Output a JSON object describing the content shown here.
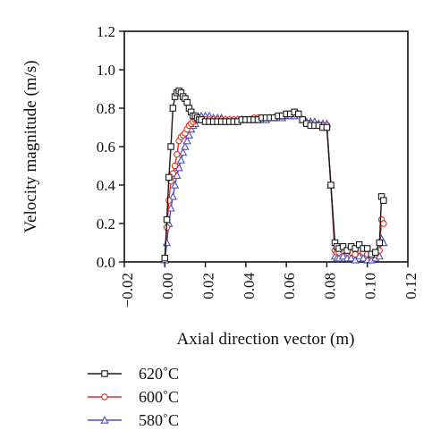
{
  "chart_data": {
    "type": "line",
    "xlabel": "Axial direction vector (m)",
    "ylabel": "Velocity magnitude (m/s)",
    "xlim": [
      -0.02,
      0.12
    ],
    "ylim": [
      0.0,
      1.2
    ],
    "xticks": [
      "−0.02",
      "0.00",
      "0.02",
      "0.04",
      "0.06",
      "0.08",
      "0.10",
      "0.12"
    ],
    "yticks": [
      "0.0",
      "0.2",
      "0.4",
      "0.6",
      "0.8",
      "1.0",
      "1.2"
    ],
    "grid": false,
    "legend": {
      "position": "bottom-left"
    },
    "series": [
      {
        "name": "620˚C",
        "color": "#1a1a1a",
        "marker": "square",
        "x": [
          0.0,
          0.001,
          0.002,
          0.003,
          0.004,
          0.005,
          0.006,
          0.007,
          0.008,
          0.009,
          0.01,
          0.011,
          0.012,
          0.013,
          0.014,
          0.015,
          0.016,
          0.017,
          0.018,
          0.02,
          0.022,
          0.024,
          0.026,
          0.028,
          0.03,
          0.032,
          0.034,
          0.036,
          0.038,
          0.04,
          0.042,
          0.044,
          0.046,
          0.048,
          0.05,
          0.052,
          0.054,
          0.056,
          0.058,
          0.06,
          0.062,
          0.064,
          0.066,
          0.068,
          0.07,
          0.072,
          0.074,
          0.076,
          0.078,
          0.08,
          0.082,
          0.084,
          0.085,
          0.086,
          0.088,
          0.09,
          0.092,
          0.094,
          0.096,
          0.098,
          0.1,
          0.102,
          0.104,
          0.106,
          0.107,
          0.108
        ],
        "y": [
          0.02,
          0.22,
          0.44,
          0.6,
          0.8,
          0.86,
          0.88,
          0.89,
          0.88,
          0.86,
          0.85,
          0.83,
          0.8,
          0.78,
          0.76,
          0.76,
          0.75,
          0.74,
          0.74,
          0.73,
          0.73,
          0.73,
          0.73,
          0.73,
          0.73,
          0.73,
          0.73,
          0.73,
          0.74,
          0.74,
          0.74,
          0.74,
          0.74,
          0.75,
          0.75,
          0.75,
          0.75,
          0.76,
          0.76,
          0.77,
          0.77,
          0.78,
          0.77,
          0.74,
          0.72,
          0.71,
          0.71,
          0.71,
          0.7,
          0.7,
          0.4,
          0.1,
          0.08,
          0.07,
          0.08,
          0.06,
          0.08,
          0.07,
          0.09,
          0.07,
          0.07,
          0.04,
          0.05,
          0.1,
          0.34,
          0.32
        ]
      },
      {
        "name": "600˚C",
        "color": "#e0301e",
        "marker": "circle",
        "x": [
          0.0,
          0.001,
          0.002,
          0.003,
          0.004,
          0.005,
          0.006,
          0.007,
          0.008,
          0.009,
          0.01,
          0.011,
          0.012,
          0.013,
          0.014,
          0.015,
          0.016,
          0.017,
          0.018,
          0.02,
          0.022,
          0.024,
          0.026,
          0.028,
          0.03,
          0.032,
          0.034,
          0.036,
          0.038,
          0.04,
          0.042,
          0.044,
          0.046,
          0.048,
          0.05,
          0.052,
          0.054,
          0.056,
          0.058,
          0.06,
          0.062,
          0.064,
          0.066,
          0.068,
          0.07,
          0.072,
          0.074,
          0.076,
          0.078,
          0.08,
          0.082,
          0.084,
          0.085,
          0.086,
          0.088,
          0.09,
          0.092,
          0.094,
          0.096,
          0.098,
          0.1,
          0.102,
          0.104,
          0.106,
          0.107,
          0.108
        ],
        "y": [
          0.02,
          0.18,
          0.32,
          0.42,
          0.46,
          0.5,
          0.56,
          0.63,
          0.65,
          0.66,
          0.67,
          0.69,
          0.71,
          0.72,
          0.73,
          0.74,
          0.74,
          0.74,
          0.74,
          0.74,
          0.74,
          0.74,
          0.74,
          0.74,
          0.74,
          0.74,
          0.74,
          0.74,
          0.74,
          0.74,
          0.74,
          0.75,
          0.75,
          0.75,
          0.75,
          0.75,
          0.75,
          0.76,
          0.76,
          0.77,
          0.77,
          0.77,
          0.77,
          0.74,
          0.72,
          0.72,
          0.71,
          0.71,
          0.71,
          0.71,
          0.4,
          0.06,
          0.05,
          0.05,
          0.06,
          0.05,
          0.05,
          0.04,
          0.06,
          0.05,
          0.04,
          0.03,
          0.04,
          0.06,
          0.22,
          0.2
        ]
      },
      {
        "name": "580˚C",
        "color": "#4a4ec8",
        "marker": "triangle",
        "x": [
          0.0,
          0.001,
          0.002,
          0.003,
          0.004,
          0.005,
          0.006,
          0.007,
          0.008,
          0.009,
          0.01,
          0.011,
          0.012,
          0.013,
          0.014,
          0.015,
          0.016,
          0.017,
          0.018,
          0.02,
          0.022,
          0.024,
          0.026,
          0.028,
          0.03,
          0.032,
          0.034,
          0.036,
          0.038,
          0.04,
          0.042,
          0.044,
          0.046,
          0.048,
          0.05,
          0.052,
          0.054,
          0.056,
          0.058,
          0.06,
          0.062,
          0.064,
          0.066,
          0.068,
          0.07,
          0.072,
          0.074,
          0.076,
          0.078,
          0.08,
          0.082,
          0.084,
          0.085,
          0.086,
          0.088,
          0.09,
          0.092,
          0.094,
          0.096,
          0.098,
          0.1,
          0.102,
          0.104,
          0.106,
          0.107,
          0.108
        ],
        "y": [
          0.01,
          0.1,
          0.2,
          0.28,
          0.34,
          0.4,
          0.45,
          0.49,
          0.53,
          0.57,
          0.6,
          0.63,
          0.66,
          0.69,
          0.71,
          0.72,
          0.74,
          0.75,
          0.76,
          0.76,
          0.76,
          0.75,
          0.75,
          0.75,
          0.74,
          0.74,
          0.74,
          0.74,
          0.74,
          0.74,
          0.74,
          0.74,
          0.74,
          0.74,
          0.74,
          0.75,
          0.75,
          0.75,
          0.75,
          0.76,
          0.76,
          0.76,
          0.77,
          0.74,
          0.73,
          0.73,
          0.73,
          0.72,
          0.72,
          0.72,
          0.4,
          0.03,
          0.02,
          0.02,
          0.03,
          0.02,
          0.02,
          0.01,
          0.03,
          0.02,
          0.01,
          0.01,
          0.02,
          0.03,
          0.12,
          0.1
        ]
      }
    ]
  }
}
